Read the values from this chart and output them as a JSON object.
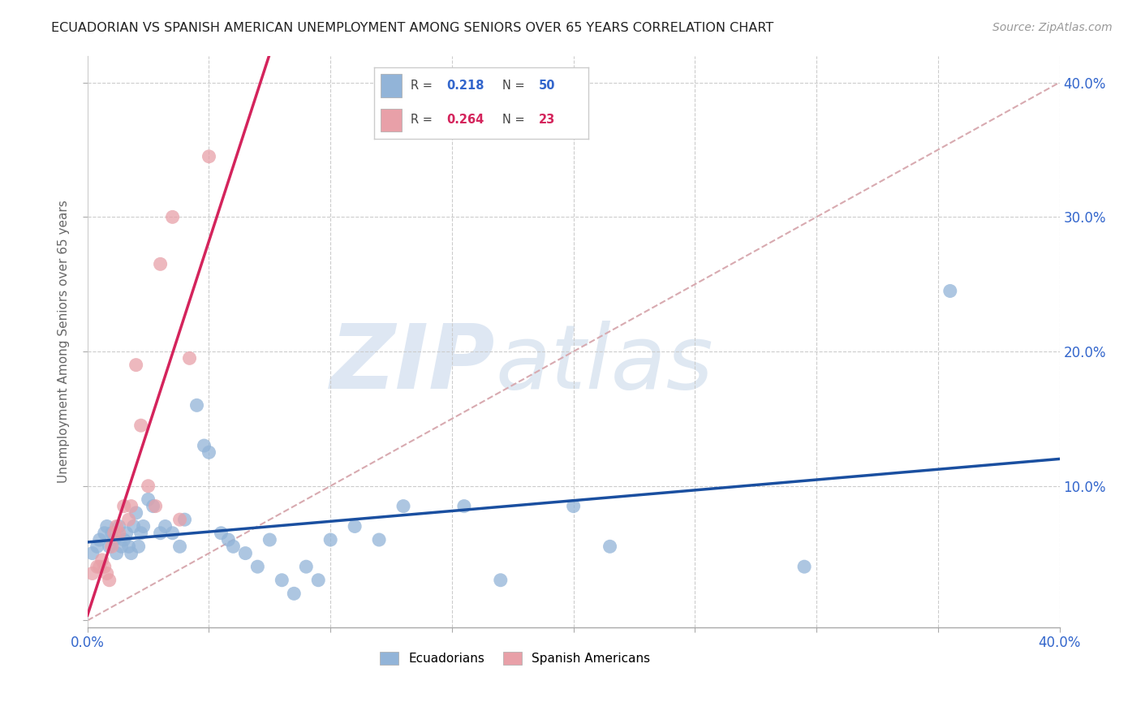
{
  "title": "ECUADORIAN VS SPANISH AMERICAN UNEMPLOYMENT AMONG SENIORS OVER 65 YEARS CORRELATION CHART",
  "source": "Source: ZipAtlas.com",
  "ylabel": "Unemployment Among Seniors over 65 years",
  "xlim": [
    0,
    0.4
  ],
  "ylim": [
    -0.005,
    0.42
  ],
  "xtick_positions": [
    0.0,
    0.05,
    0.1,
    0.15,
    0.2,
    0.25,
    0.3,
    0.35,
    0.4
  ],
  "xtick_labels": [
    "0.0%",
    "",
    "",
    "",
    "",
    "",
    "",
    "",
    "40.0%"
  ],
  "yticks_right": [
    0.1,
    0.2,
    0.3,
    0.4
  ],
  "ytick_positions": [
    0.0,
    0.1,
    0.2,
    0.3,
    0.4
  ],
  "blue_color": "#92b4d8",
  "pink_color": "#e8a0a8",
  "blue_line_color": "#1a4fa0",
  "pink_line_color": "#d4245c",
  "diag_color": "#d8aab0",
  "diag_style": "--",
  "r_blue": 0.218,
  "n_blue": 50,
  "r_pink": 0.264,
  "n_pink": 23,
  "blue_x": [
    0.002,
    0.004,
    0.005,
    0.007,
    0.008,
    0.009,
    0.01,
    0.011,
    0.012,
    0.013,
    0.014,
    0.015,
    0.016,
    0.017,
    0.018,
    0.019,
    0.02,
    0.021,
    0.022,
    0.023,
    0.025,
    0.027,
    0.03,
    0.032,
    0.035,
    0.038,
    0.04,
    0.045,
    0.048,
    0.05,
    0.055,
    0.058,
    0.06,
    0.065,
    0.07,
    0.075,
    0.08,
    0.085,
    0.09,
    0.095,
    0.1,
    0.11,
    0.12,
    0.13,
    0.155,
    0.17,
    0.2,
    0.215,
    0.295,
    0.355
  ],
  "blue_y": [
    0.05,
    0.055,
    0.06,
    0.065,
    0.07,
    0.055,
    0.065,
    0.06,
    0.05,
    0.07,
    0.055,
    0.06,
    0.065,
    0.055,
    0.05,
    0.07,
    0.08,
    0.055,
    0.065,
    0.07,
    0.09,
    0.085,
    0.065,
    0.07,
    0.065,
    0.055,
    0.075,
    0.16,
    0.13,
    0.125,
    0.065,
    0.06,
    0.055,
    0.05,
    0.04,
    0.06,
    0.03,
    0.02,
    0.04,
    0.03,
    0.06,
    0.07,
    0.06,
    0.085,
    0.085,
    0.03,
    0.085,
    0.055,
    0.04,
    0.245
  ],
  "pink_x": [
    0.002,
    0.004,
    0.005,
    0.006,
    0.007,
    0.008,
    0.009,
    0.01,
    0.011,
    0.012,
    0.013,
    0.015,
    0.017,
    0.018,
    0.02,
    0.022,
    0.025,
    0.028,
    0.03,
    0.035,
    0.038,
    0.042,
    0.05
  ],
  "pink_y": [
    0.035,
    0.04,
    0.04,
    0.045,
    0.04,
    0.035,
    0.03,
    0.055,
    0.065,
    0.07,
    0.065,
    0.085,
    0.075,
    0.085,
    0.19,
    0.145,
    0.1,
    0.085,
    0.265,
    0.3,
    0.075,
    0.195,
    0.345
  ]
}
